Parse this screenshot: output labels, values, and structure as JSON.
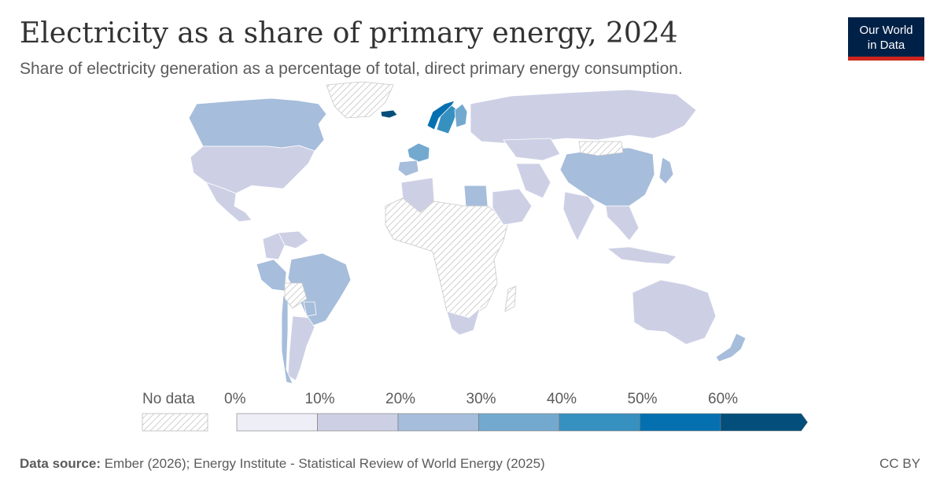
{
  "header": {
    "title": "Electricity as a share of primary energy, 2024",
    "subtitle": "Share of electricity generation as a percentage of total, direct primary energy consumption."
  },
  "logo": {
    "line1": "Our World",
    "line2": "in Data"
  },
  "legend": {
    "no_data_label": "No data",
    "bins": [
      {
        "label": "0%",
        "color": "#eeeef6"
      },
      {
        "label": "10%",
        "color": "#cdd0e5"
      },
      {
        "label": "20%",
        "color": "#a6bddb"
      },
      {
        "label": "30%",
        "color": "#74a9cf"
      },
      {
        "label": "40%",
        "color": "#3690c0"
      },
      {
        "label": "50%",
        "color": "#0570b0"
      },
      {
        "label": "60%",
        "color": "#034e7b"
      }
    ]
  },
  "colors": {
    "no_data": "#d9d9d9",
    "border": "#ffffff"
  },
  "map_data": {
    "regions": [
      {
        "name": "Canada",
        "bin": 2
      },
      {
        "name": "United States",
        "bin": 1
      },
      {
        "name": "Mexico",
        "bin": 1
      },
      {
        "name": "Greenland",
        "bin": -1
      },
      {
        "name": "Iceland",
        "bin": 6
      },
      {
        "name": "Norway",
        "bin": 5
      },
      {
        "name": "Sweden",
        "bin": 4
      },
      {
        "name": "Finland",
        "bin": 3
      },
      {
        "name": "France",
        "bin": 3
      },
      {
        "name": "Spain",
        "bin": 2
      },
      {
        "name": "Russia",
        "bin": 1
      },
      {
        "name": "China",
        "bin": 2
      },
      {
        "name": "India",
        "bin": 1
      },
      {
        "name": "Japan",
        "bin": 2
      },
      {
        "name": "Brazil",
        "bin": 2
      },
      {
        "name": "Peru",
        "bin": 2
      },
      {
        "name": "Colombia",
        "bin": 1
      },
      {
        "name": "Venezuela",
        "bin": 1
      },
      {
        "name": "Argentina",
        "bin": 1
      },
      {
        "name": "Chile",
        "bin": 2
      },
      {
        "name": "Paraguay",
        "bin": 2
      },
      {
        "name": "Bolivia",
        "bin": -1
      },
      {
        "name": "Australia",
        "bin": 1
      },
      {
        "name": "New Zealand",
        "bin": 2
      },
      {
        "name": "Egypt",
        "bin": 2
      },
      {
        "name": "Algeria",
        "bin": 1
      },
      {
        "name": "Sub-Saharan Africa",
        "bin": -1
      },
      {
        "name": "South Africa",
        "bin": 1
      },
      {
        "name": "Saudi Arabia",
        "bin": 1
      },
      {
        "name": "Iran",
        "bin": 1
      },
      {
        "name": "Kazakhstan",
        "bin": 1
      },
      {
        "name": "Mongolia",
        "bin": -1
      },
      {
        "name": "Southeast Asia",
        "bin": 1
      },
      {
        "name": "Indonesia",
        "bin": 1
      },
      {
        "name": "Madagascar",
        "bin": -1
      }
    ]
  },
  "footer": {
    "source_label": "Data source:",
    "source_text": "Ember (2026); Energy Institute - Statistical Review of World Energy (2025)",
    "license": "CC BY"
  }
}
